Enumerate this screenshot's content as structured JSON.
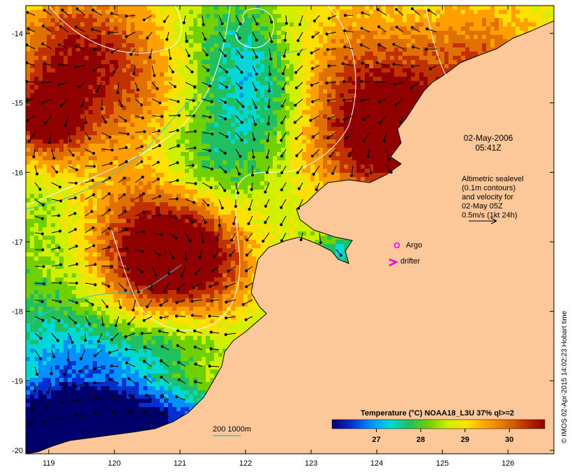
{
  "map": {
    "lon_range": [
      118.65,
      126.7
    ],
    "lat_range": [
      -20.05,
      -13.6
    ],
    "x_ticks": [
      119,
      120,
      121,
      122,
      123,
      124,
      125,
      126
    ],
    "y_ticks": [
      -14,
      -15,
      -16,
      -17,
      -18,
      -19,
      -20
    ],
    "x_tick_labels": [
      "119",
      "120",
      "121",
      "122",
      "123",
      "124",
      "125",
      "126"
    ],
    "y_tick_labels": [
      "-14",
      "-15",
      "-16",
      "-17",
      "-18",
      "-19",
      "-20"
    ]
  },
  "date": {
    "line1": "02-May-2006",
    "line2": "05:41Z"
  },
  "altimetry": {
    "line1": "Altimetric sealevel",
    "line2": "(0.1m contours)",
    "line3": "and velocity for",
    "line4": "02-May 05Z",
    "line5": "0.5m/s (1kt 24h)"
  },
  "legend": {
    "argo_label": "Argo",
    "drifter_label": "drifter",
    "argo_color": "#e000e0",
    "drifter_color": "#e000e0",
    "isobath_label": "200  1000m",
    "isobath_color": "#40c0c0"
  },
  "colorbar": {
    "title": "Temperature (°C) NOAA18_L3U 37% ql>=2",
    "ticks": [
      "27",
      "28",
      "29",
      "30"
    ],
    "tick_values": [
      27,
      28,
      29,
      30
    ],
    "range": [
      26.0,
      30.8
    ],
    "colors": [
      "#00006a",
      "#0030d0",
      "#0090ff",
      "#00d8d8",
      "#20c060",
      "#70d000",
      "#d0f000",
      "#ffe000",
      "#ffa000",
      "#e07000",
      "#c03000",
      "#900000"
    ]
  },
  "credit": "© IMOS 02-Apr-2015 14:02:23 Hobart time",
  "colors": {
    "land": "#fcc89a",
    "frame": "#000000",
    "contour": "#ffffff",
    "arrow": "#000000"
  }
}
